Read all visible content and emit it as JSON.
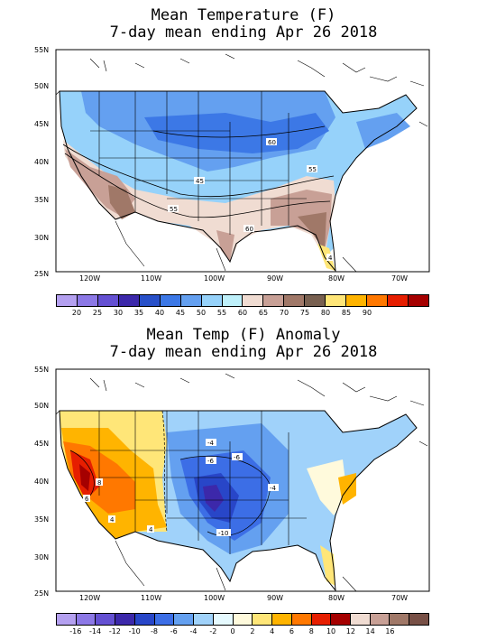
{
  "top": {
    "title_line1": "Mean Temperature (F)",
    "title_line2": "7-day mean ending Apr 26 2018",
    "lat_labels": [
      "55N",
      "50N",
      "45N",
      "40N",
      "35N",
      "30N",
      "25N"
    ],
    "lon_labels": [
      "120W",
      "110W",
      "100W",
      "90W",
      "80W",
      "70W"
    ],
    "contour_labels": [
      "60",
      "55",
      "45",
      "55",
      "60",
      "4"
    ],
    "legend_values": [
      "20",
      "25",
      "30",
      "35",
      "40",
      "45",
      "50",
      "55",
      "60",
      "65",
      "70",
      "75",
      "80",
      "85",
      "90"
    ],
    "legend_colors": [
      "#b4a0f0",
      "#8c78e6",
      "#6450d2",
      "#3c28aa",
      "#2850c8",
      "#3c78e6",
      "#64a0f0",
      "#96d2fa",
      "#bef0fa",
      "#f0dcd2",
      "#c8a096",
      "#a07868",
      "#786050",
      "#ffe678",
      "#ffb400",
      "#ff7800",
      "#e61e00",
      "#a50000"
    ]
  },
  "bottom": {
    "title_line1": "Mean Temp (F) Anomaly",
    "title_line2": "7-day mean ending Apr 26 2018",
    "lat_labels": [
      "55N",
      "50N",
      "45N",
      "40N",
      "35N",
      "30N",
      "25N"
    ],
    "lon_labels": [
      "120W",
      "110W",
      "100W",
      "90W",
      "80W",
      "70W"
    ],
    "contour_labels": [
      "-4",
      "-6",
      "-6",
      "-4",
      "-10",
      "8",
      "6",
      "4",
      "4"
    ],
    "legend_values": [
      "-16",
      "-14",
      "-12",
      "-10",
      "-8",
      "-6",
      "-4",
      "-2",
      "0",
      "2",
      "4",
      "6",
      "8",
      "10",
      "12",
      "14",
      "16"
    ],
    "legend_colors": [
      "#b4a0f0",
      "#8c78e6",
      "#6450d2",
      "#3c28aa",
      "#2846c8",
      "#3c6ee6",
      "#64a0f0",
      "#a0d2fa",
      "#e6faff",
      "#fffadc",
      "#ffe678",
      "#ffb400",
      "#ff7800",
      "#e61e00",
      "#a50000",
      "#f0dcd2",
      "#c8a096",
      "#a07868",
      "#785046"
    ]
  }
}
